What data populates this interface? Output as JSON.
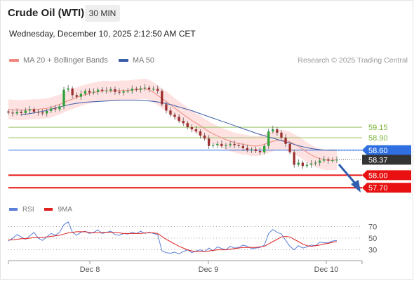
{
  "header": {
    "title": "Crude Oil (WTI)",
    "timeframe": "30 MIN",
    "datetime": "Wednesday, December 10, 2025 2:12:50 AM CET"
  },
  "legend": {
    "ma20_label": "MA 20 + Bollinger Bands",
    "ma50_label": "MA 50",
    "ma20_color": "#f08a80",
    "ma50_color": "#3a5da8",
    "credit": "Research © 2025 Trading Central"
  },
  "rsi_legend": {
    "rsi_label": "RSI",
    "ma_label": "9MA",
    "rsi_color": "#5b7fd6",
    "ma_color": "#e02020"
  },
  "chart_data": [
    {
      "type": "candlestick",
      "title": "Crude Oil (WTI)",
      "timeframe": "30 MIN",
      "x_tick_labels": [
        "Dec 8",
        "Dec 9",
        "Dec 10"
      ],
      "ylim": [
        57.4,
        60.6
      ],
      "levels": [
        {
          "label": "59.15",
          "value": 59.15,
          "kind": "target",
          "color": "#9bc46a"
        },
        {
          "label": "58.90",
          "value": 58.9,
          "kind": "target",
          "color": "#9bc46a"
        },
        {
          "label": "58.60",
          "value": 58.6,
          "kind": "pivot",
          "color": "#2f6fe0"
        },
        {
          "label": "58.37",
          "value": 58.37,
          "kind": "last",
          "color": "#333333"
        },
        {
          "label": "58.00",
          "value": 58.0,
          "kind": "support",
          "color": "#e81010"
        },
        {
          "label": "57.70",
          "value": 57.7,
          "kind": "support",
          "color": "#e81010"
        }
      ],
      "close": [
        59.5,
        59.48,
        59.52,
        59.49,
        59.55,
        59.58,
        59.52,
        59.5,
        59.48,
        59.54,
        59.6,
        59.58,
        59.65,
        60.05,
        60.08,
        59.92,
        59.88,
        59.95,
        60.02,
        59.98,
        60.0,
        60.05,
        60.02,
        60.03,
        60.06,
        60.0,
        59.98,
        60.01,
        60.02,
        60.07,
        60.05,
        60.08,
        60.1,
        60.06,
        60.07,
        60.02,
        59.7,
        59.55,
        59.45,
        59.4,
        59.3,
        59.25,
        59.15,
        59.1,
        59.05,
        58.95,
        58.88,
        58.7,
        58.72,
        58.75,
        58.7,
        58.72,
        58.75,
        58.72,
        58.7,
        58.65,
        58.6,
        58.62,
        58.58,
        58.55,
        58.7,
        59.05,
        59.1,
        59.02,
        58.9,
        58.75,
        58.55,
        58.25,
        58.3,
        58.22,
        58.25,
        58.28,
        58.3,
        58.35,
        58.38,
        58.35,
        58.36,
        58.37
      ],
      "ma20": [
        59.58,
        59.57,
        59.56,
        59.56,
        59.57,
        59.58,
        59.58,
        59.59,
        59.6,
        59.62,
        59.66,
        59.7,
        59.75,
        59.8,
        59.84,
        59.88,
        59.92,
        59.95,
        59.98,
        60.0,
        60.02,
        60.02,
        60.02,
        60.02,
        60.03,
        60.03,
        60.04,
        60.05,
        60.06,
        60.07,
        60.05,
        59.98,
        59.9,
        59.82,
        59.74,
        59.65,
        59.56,
        59.48,
        59.4,
        59.32,
        59.25,
        59.18,
        59.1,
        59.03,
        58.97,
        58.92,
        58.87,
        58.83,
        58.79,
        58.76,
        58.74,
        58.72,
        58.7,
        58.7,
        58.72,
        58.76,
        58.8,
        58.83,
        58.84,
        58.83,
        58.8,
        58.74,
        58.68,
        58.6,
        58.52,
        58.46,
        58.41,
        58.38,
        58.36,
        58.36,
        58.37
      ],
      "ma50": [
        59.45,
        59.47,
        59.5,
        59.53,
        59.57,
        59.62,
        59.66,
        59.7,
        59.73,
        59.75,
        59.76,
        59.77,
        59.78,
        59.79,
        59.8,
        59.8,
        59.8,
        59.79,
        59.78,
        59.76,
        59.73,
        59.69,
        59.64,
        59.59,
        59.54,
        59.48,
        59.42,
        59.36,
        59.3,
        59.24,
        59.18,
        59.12,
        59.06,
        59.0,
        58.95,
        58.9,
        58.85,
        58.8,
        58.75,
        58.7,
        58.66,
        58.63,
        58.61,
        58.6,
        58.6
      ]
    },
    {
      "type": "line",
      "title": "RSI",
      "ylim": [
        15,
        85
      ],
      "y_tick_labels": [
        "70",
        "50",
        "30"
      ],
      "series": [
        {
          "name": "RSI",
          "values": [
            45,
            50,
            56,
            52,
            48,
            54,
            60,
            50,
            46,
            52,
            58,
            55,
            60,
            73,
            78,
            60,
            55,
            60,
            62,
            58,
            60,
            64,
            58,
            60,
            62,
            56,
            55,
            58,
            57,
            60,
            58,
            62,
            58,
            60,
            58,
            56,
            28,
            25,
            24,
            26,
            23,
            27,
            30,
            25,
            28,
            30,
            27,
            33,
            28,
            35,
            32,
            30,
            36,
            33,
            34,
            38,
            36,
            32,
            33,
            34,
            38,
            58,
            65,
            60,
            57,
            46,
            36,
            30,
            37,
            33,
            35,
            38,
            37,
            43,
            42,
            42,
            45,
            46
          ]
        },
        {
          "name": "9MA",
          "values": [
            47,
            47,
            48,
            49,
            49,
            50,
            51,
            51,
            51,
            52,
            53,
            54,
            55,
            57,
            59,
            60,
            61,
            61,
            61,
            60,
            59,
            59,
            60,
            60,
            60,
            60,
            59,
            58,
            58,
            58,
            58,
            58,
            59,
            59,
            59,
            58,
            53,
            48,
            44,
            40,
            36,
            33,
            30,
            28,
            27,
            27,
            27,
            28,
            29,
            30,
            30,
            30,
            31,
            32,
            33,
            34,
            34,
            34,
            34,
            35,
            36,
            40,
            44,
            48,
            52,
            53,
            52,
            48,
            44,
            40,
            37,
            36,
            37,
            38,
            40,
            41,
            43,
            44
          ]
        }
      ]
    }
  ]
}
